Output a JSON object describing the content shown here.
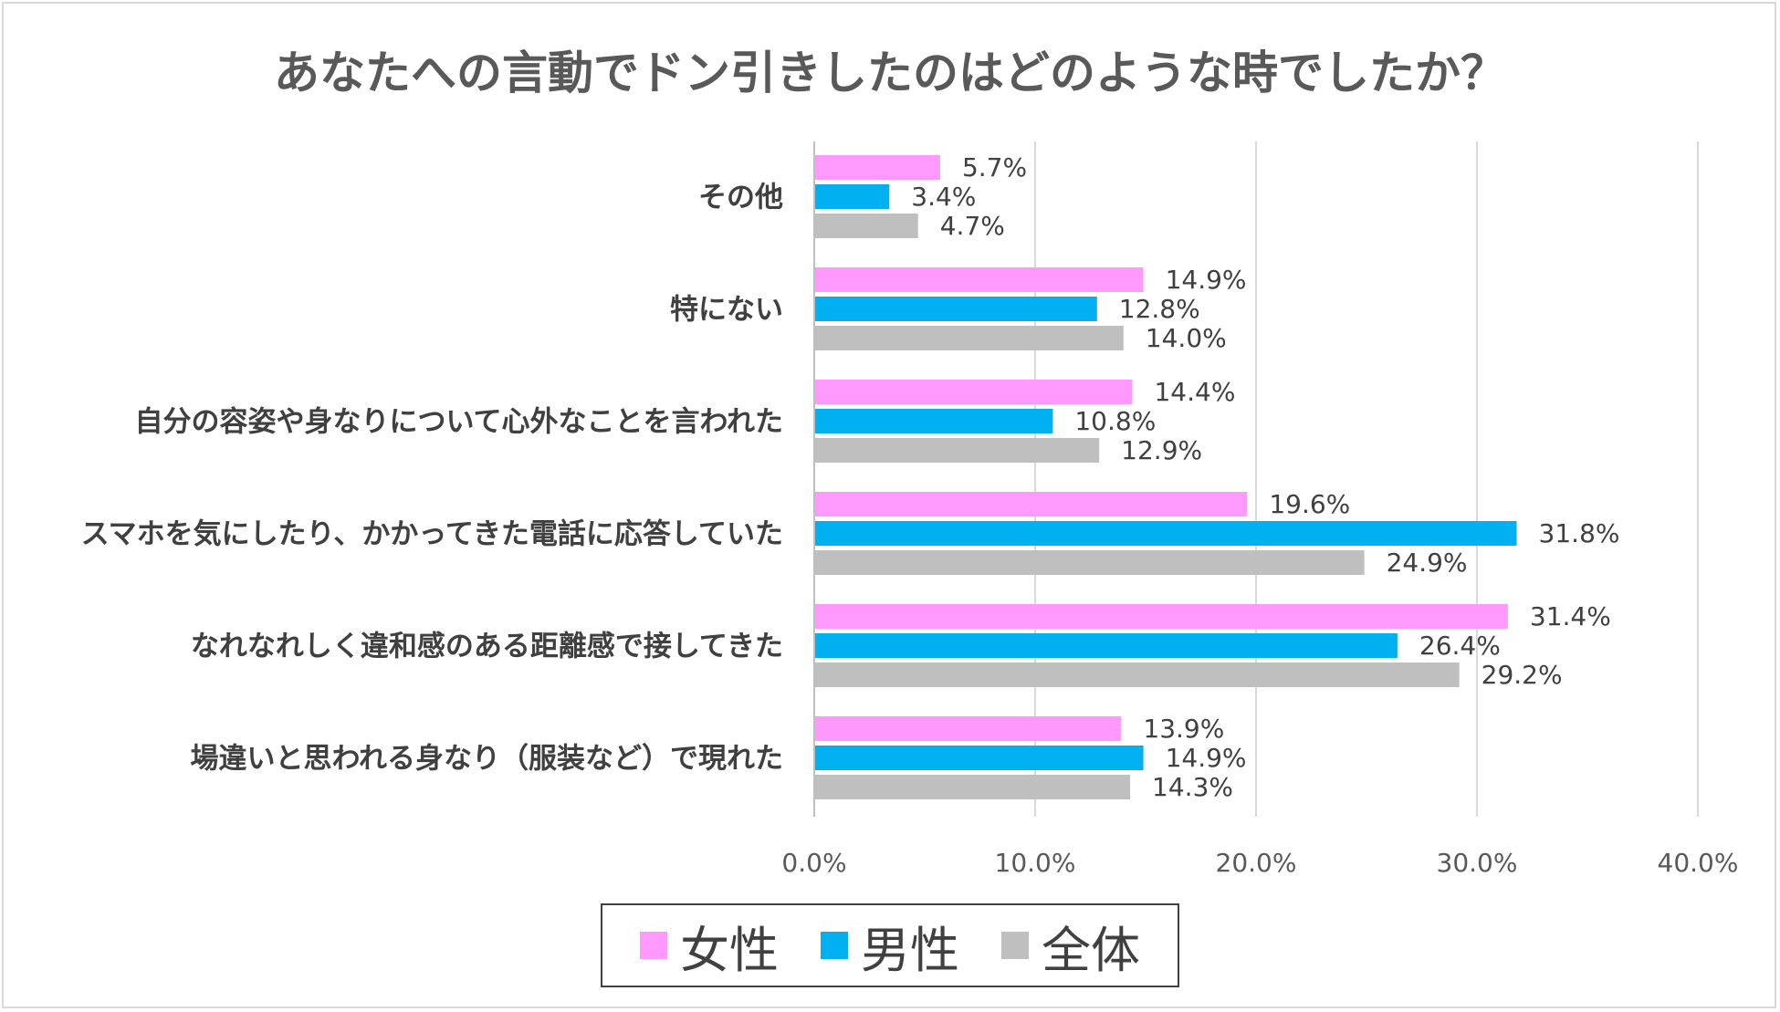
{
  "chart_data": {
    "type": "bar",
    "orientation": "horizontal",
    "title": "あなたへの言動でドン引きしたのはどのような時でしたか？",
    "categories": [
      "その他",
      "特にない",
      "自分の容姿や身なりについて心外なことを言われた",
      "スマホを気にしたり、かかってきた電話に応答していた",
      "なれなれしく違和感のある距離感で接してきた",
      "場違いと思われる身なり（服装など）で現れた"
    ],
    "series": [
      {
        "name": "女性",
        "color": "#ff99ff",
        "values": [
          5.7,
          14.9,
          14.4,
          19.6,
          31.4,
          13.9
        ]
      },
      {
        "name": "男性",
        "color": "#00b0f0",
        "values": [
          3.4,
          12.8,
          10.8,
          31.8,
          26.4,
          14.9
        ]
      },
      {
        "name": "全体",
        "color": "#bfbfbf",
        "values": [
          4.7,
          14.0,
          12.9,
          24.9,
          29.2,
          14.3
        ]
      }
    ],
    "xlim": [
      0,
      40
    ],
    "xticks": [
      "0.0%",
      "10.0%",
      "20.0%",
      "30.0%",
      "40.0%"
    ],
    "grid": true,
    "legend_position": "bottom"
  }
}
